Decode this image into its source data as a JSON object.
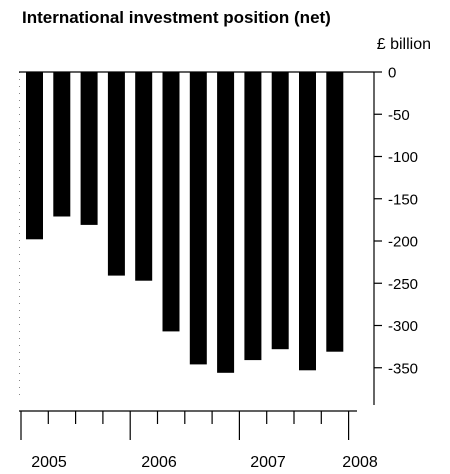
{
  "chart_data": {
    "type": "bar",
    "title": "International investment position (net)",
    "unit_label": "£ billion",
    "categories": [
      "2005 Q1",
      "2005 Q2",
      "2005 Q3",
      "2005 Q4",
      "2006 Q1",
      "2006 Q2",
      "2006 Q3",
      "2006 Q4",
      "2007 Q1",
      "2007 Q2",
      "2007 Q3",
      "2007 Q4"
    ],
    "values": [
      -198,
      -171,
      -181,
      -241,
      -247,
      -307,
      -346,
      -356,
      -341,
      -328,
      -353,
      -331
    ],
    "ylim": [
      -380,
      0
    ],
    "yticks": [
      0,
      -50,
      -100,
      -150,
      -200,
      -250,
      -300,
      -350
    ],
    "ytick_labels": [
      "0",
      "-50",
      "-100",
      "-150",
      "-200",
      "-250",
      "-300",
      "-350"
    ],
    "year_labels": [
      "2005",
      "2006",
      "2007",
      "2008"
    ],
    "bar_color": "#000000",
    "grid": false
  }
}
